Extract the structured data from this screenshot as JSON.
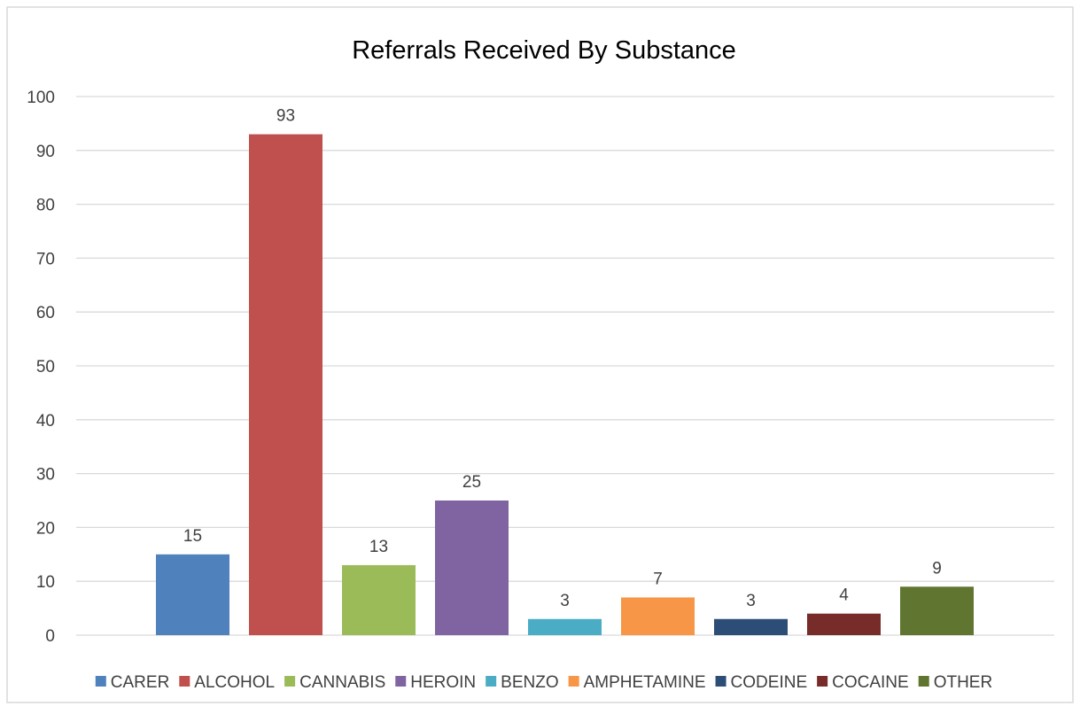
{
  "chart_data": {
    "type": "bar",
    "title": "Referrals Received By Substance",
    "xlabel": "",
    "ylabel": "",
    "ylim": [
      0,
      100
    ],
    "yticks": [
      0,
      10,
      20,
      30,
      40,
      50,
      60,
      70,
      80,
      90,
      100
    ],
    "grid": true,
    "legend_position": "bottom",
    "data_labels": true,
    "series": [
      {
        "name": "CARER",
        "value": 15,
        "color": "#4f81bd"
      },
      {
        "name": "ALCOHOL",
        "value": 93,
        "color": "#c0504d"
      },
      {
        "name": "CANNABIS",
        "value": 13,
        "color": "#9bbb59"
      },
      {
        "name": "HEROIN",
        "value": 25,
        "color": "#8064a2"
      },
      {
        "name": "BENZO",
        "value": 3,
        "color": "#4bacc6"
      },
      {
        "name": "AMPHETAMINE",
        "value": 7,
        "color": "#f79646"
      },
      {
        "name": "CODEINE",
        "value": 3,
        "color": "#2c4d75"
      },
      {
        "name": "COCAINE",
        "value": 4,
        "color": "#772c2a"
      },
      {
        "name": "OTHER",
        "value": 9,
        "color": "#5f7530"
      }
    ]
  }
}
